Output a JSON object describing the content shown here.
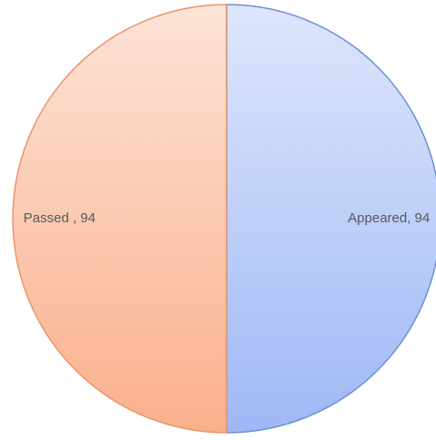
{
  "chart_data": {
    "type": "pie",
    "categories": [
      "Appeared",
      "Passed"
    ],
    "values": [
      94,
      94
    ],
    "value_labels": [
      "Appeared, 94",
      "Passed , 94"
    ],
    "colors": [
      "#9fb8f5",
      "#f9b08c"
    ],
    "edge_colors": [
      "#6a8fd6",
      "#e8956a"
    ]
  }
}
